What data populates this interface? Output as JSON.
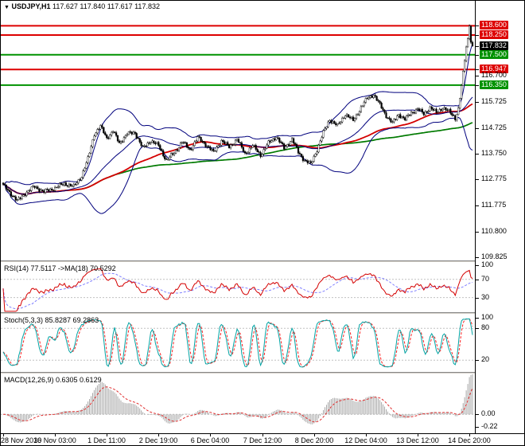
{
  "window": {
    "symbol": "USDJPY,H1",
    "ohlc": "117.627 117.840 117.617 117.832"
  },
  "icons": {
    "chart_marker": "▼"
  },
  "colors": {
    "background": "#ffffff",
    "candle_up_fill": "#ffffff",
    "candle_down_fill": "#000000",
    "candle_outline": "#000000",
    "bollinger": "#00007d",
    "ma_fast_red": "#d40000",
    "ma_slow_green": "#007a00",
    "level_red": "#dd0000",
    "level_green": "#009200",
    "current_price_bg": "#000000",
    "rsi_line": "#d40000",
    "rsi_ma": "#8080ff",
    "stoch_main": "#00a3a3",
    "stoch_signal": "#ff2020",
    "macd_hist": "#a8a8a8",
    "macd_signal": "#e03030",
    "osc_level": "#c0c0c0",
    "axis_text": "#000000"
  },
  "chart_data": {
    "type": "candlestick",
    "symbol": "USDJPY",
    "timeframe": "H1",
    "bars": 300,
    "tick_bar_step": 33,
    "main_range": [
      109.7,
      119.55
    ],
    "macd_range": [
      -0.34,
      0.72
    ],
    "price_anchors": [
      [
        0,
        112.55
      ],
      [
        4,
        112.3
      ],
      [
        9,
        111.95
      ],
      [
        14,
        112.25
      ],
      [
        20,
        112.5
      ],
      [
        26,
        112.3
      ],
      [
        33,
        112.45
      ],
      [
        39,
        112.62
      ],
      [
        45,
        112.5
      ],
      [
        50,
        112.9
      ],
      [
        54,
        113.55
      ],
      [
        58,
        114.5
      ],
      [
        62,
        114.78
      ],
      [
        66,
        114.35
      ],
      [
        70,
        114.6
      ],
      [
        74,
        114.15
      ],
      [
        79,
        114.5
      ],
      [
        84,
        114.55
      ],
      [
        89,
        113.95
      ],
      [
        94,
        114.25
      ],
      [
        99,
        114.05
      ],
      [
        104,
        113.5
      ],
      [
        109,
        113.78
      ],
      [
        114,
        114.2
      ],
      [
        119,
        113.9
      ],
      [
        124,
        114.35
      ],
      [
        129,
        114.1
      ],
      [
        134,
        113.8
      ],
      [
        139,
        114.25
      ],
      [
        144,
        114.0
      ],
      [
        149,
        114.3
      ],
      [
        154,
        113.75
      ],
      [
        159,
        114.05
      ],
      [
        164,
        113.7
      ],
      [
        169,
        114.15
      ],
      [
        174,
        114.4
      ],
      [
        179,
        113.95
      ],
      [
        184,
        114.3
      ],
      [
        188,
        113.8
      ],
      [
        192,
        113.5
      ],
      [
        196,
        113.35
      ],
      [
        200,
        113.9
      ],
      [
        204,
        114.55
      ],
      [
        208,
        115.05
      ],
      [
        213,
        114.8
      ],
      [
        218,
        115.25
      ],
      [
        223,
        115.0
      ],
      [
        228,
        115.5
      ],
      [
        232,
        115.85
      ],
      [
        236,
        116.0
      ],
      [
        240,
        115.6
      ],
      [
        244,
        115.2
      ],
      [
        248,
        114.9
      ],
      [
        252,
        115.25
      ],
      [
        256,
        115.05
      ],
      [
        260,
        115.3
      ],
      [
        264,
        115.45
      ],
      [
        268,
        115.25
      ],
      [
        272,
        115.5
      ],
      [
        276,
        115.3
      ],
      [
        280,
        115.5
      ],
      [
        284,
        115.35
      ],
      [
        288,
        115.1
      ],
      [
        290,
        115.45
      ],
      [
        292,
        116.3
      ],
      [
        294,
        117.3
      ],
      [
        295,
        117.8
      ],
      [
        296,
        118.1
      ],
      [
        297,
        118.68
      ],
      [
        298,
        118.0
      ],
      [
        299,
        117.832
      ]
    ],
    "level_lines": [
      {
        "price": 118.6,
        "color": "#dd0000",
        "width": 2
      },
      {
        "price": 118.25,
        "color": "#dd0000",
        "width": 2
      },
      {
        "price": 117.5,
        "color": "#009200",
        "width": 2
      },
      {
        "price": 116.947,
        "color": "#dd0000",
        "width": 2
      },
      {
        "price": 116.35,
        "color": "#009200",
        "width": 2
      }
    ],
    "main_axis_labels": [
      {
        "price": 118.6,
        "label": "118.600",
        "box": "#dd0000"
      },
      {
        "price": 118.25,
        "label": "118.250",
        "box": "#dd0000"
      },
      {
        "price": 117.832,
        "label": "117.832",
        "box": "#000000"
      },
      {
        "price": 117.5,
        "label": "117.500",
        "box": "#009200"
      },
      {
        "price": 116.947,
        "label": "116.947",
        "box": "#dd0000"
      },
      {
        "price": 116.7,
        "label": "116.700"
      },
      {
        "price": 116.35,
        "label": "116.350",
        "box": "#009200"
      },
      {
        "price": 115.725,
        "label": "115.725"
      },
      {
        "price": 114.725,
        "label": "114.725"
      },
      {
        "price": 113.75,
        "label": "113.750"
      },
      {
        "price": 112.775,
        "label": "112.775"
      },
      {
        "price": 111.775,
        "label": "111.775"
      },
      {
        "price": 110.8,
        "label": "110.800"
      },
      {
        "price": 109.825,
        "label": "109.825"
      }
    ],
    "rsi_axis": [
      {
        "value": 100,
        "label": "100"
      },
      {
        "value": 70,
        "label": "70"
      },
      {
        "value": 30,
        "label": "30"
      }
    ],
    "stoch_axis": [
      {
        "value": 100,
        "label": "100"
      },
      {
        "value": 80,
        "label": "80"
      },
      {
        "value": 20,
        "label": "20"
      }
    ],
    "macd_axis": [
      {
        "value": 0,
        "label": "0.00"
      },
      {
        "value": -0.22,
        "label": "-0.22"
      }
    ],
    "x_ticks": [
      "28 Nov 2016",
      "30 Nov 03:00",
      "1 Dec 11:00",
      "2 Dec 19:00",
      "6 Dec 04:00",
      "7 Dec 12:00",
      "8 Dec 20:00",
      "12 Dec 04:00",
      "13 Dec 12:00",
      "14 Dec 20:00"
    ],
    "indicators": {
      "bollinger": {
        "period": 34,
        "deviation": 2
      },
      "ma_fast": {
        "period": 72
      },
      "ma_slow": {
        "period": 150
      },
      "rsi": {
        "label": "RSI(14) 77.5117 ->MA(18) 70.5292",
        "period": 14,
        "ma_period": 18,
        "levels": [
          70,
          30
        ]
      },
      "stoch": {
        "label": "Stoch(5,3,3) 85.8287 69.2863",
        "k": 5,
        "slowing": 3,
        "d": 3,
        "levels": [
          80,
          20
        ]
      },
      "macd": {
        "label": "MACD(12,26,9) 0.6305 0.6129",
        "fast": 12,
        "slow": 26,
        "signal": 9
      }
    }
  }
}
